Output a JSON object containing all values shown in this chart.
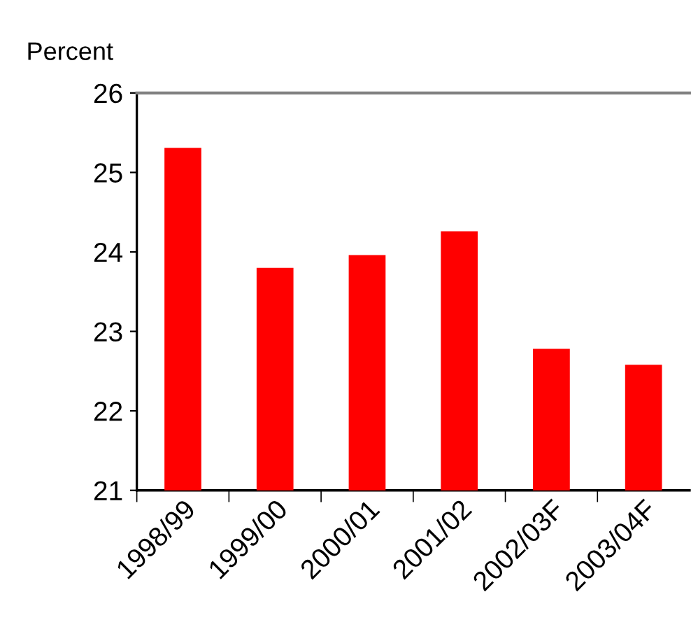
{
  "chart_data": {
    "type": "bar",
    "ylabel": "Percent",
    "categories": [
      "1998/99",
      "1999/00",
      "2000/01",
      "2001/02",
      "2002/03F",
      "2003/04F"
    ],
    "values": [
      25.31,
      23.8,
      23.96,
      24.26,
      22.78,
      22.58
    ],
    "color": "#ff0000",
    "ylim": [
      21,
      26
    ],
    "yticks": [
      21,
      22,
      23,
      24,
      25,
      26
    ],
    "grid": false,
    "legend": false
  }
}
